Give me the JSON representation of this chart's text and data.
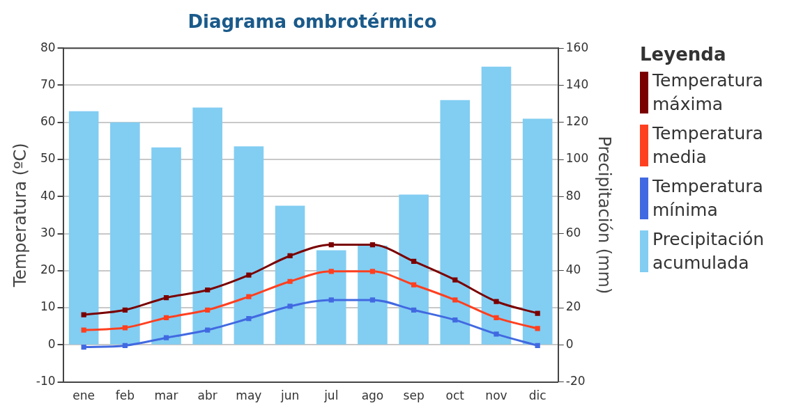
{
  "chart_data": {
    "type": "line",
    "title": "Diagrama ombrotérmico",
    "ylabel": "Temperatura (ºC)",
    "y2label": "Precipitación (mm)",
    "legend_title": "Leyenda",
    "legend": "right",
    "grid": "y",
    "marker": "square",
    "line_style": "solid",
    "categories": [
      "ene",
      "feb",
      "mar",
      "abr",
      "may",
      "jun",
      "jul",
      "ago",
      "sep",
      "oct",
      "nov",
      "dic"
    ],
    "ylim": [
      -10,
      80
    ],
    "yticks": [
      -10,
      0,
      10,
      20,
      30,
      40,
      50,
      60,
      70,
      80
    ],
    "y2lim": [
      -20,
      160
    ],
    "y2ticks": [
      -20,
      0,
      20,
      40,
      60,
      80,
      100,
      120,
      140,
      160
    ],
    "series": [
      {
        "name": "Temperatura máxima",
        "color": "#7a0000",
        "values": [
          8.1,
          9.4,
          12.7,
          14.8,
          18.8,
          24,
          27,
          27,
          22.5,
          17.5,
          11.7,
          8.5
        ]
      },
      {
        "name": "Temperatura media",
        "color": "#ff4020",
        "values": [
          4,
          4.6,
          7.3,
          9.4,
          13,
          17.1,
          19.8,
          19.8,
          16.2,
          12.1,
          7.3,
          4.4
        ]
      },
      {
        "name": "Temperatura mínima",
        "color": "#4169e1",
        "values": [
          -0.6,
          -0.2,
          1.9,
          4,
          7.1,
          10.4,
          12.1,
          12.1,
          9.4,
          6.7,
          2.9,
          -0.2
        ]
      },
      {
        "name": "Precipitación acumulada",
        "type": "bar",
        "axis": "y2",
        "color": "#82cdf2",
        "values": [
          126,
          120,
          106.5,
          128,
          107,
          75,
          51,
          53.5,
          81,
          132,
          150,
          122
        ]
      }
    ]
  }
}
